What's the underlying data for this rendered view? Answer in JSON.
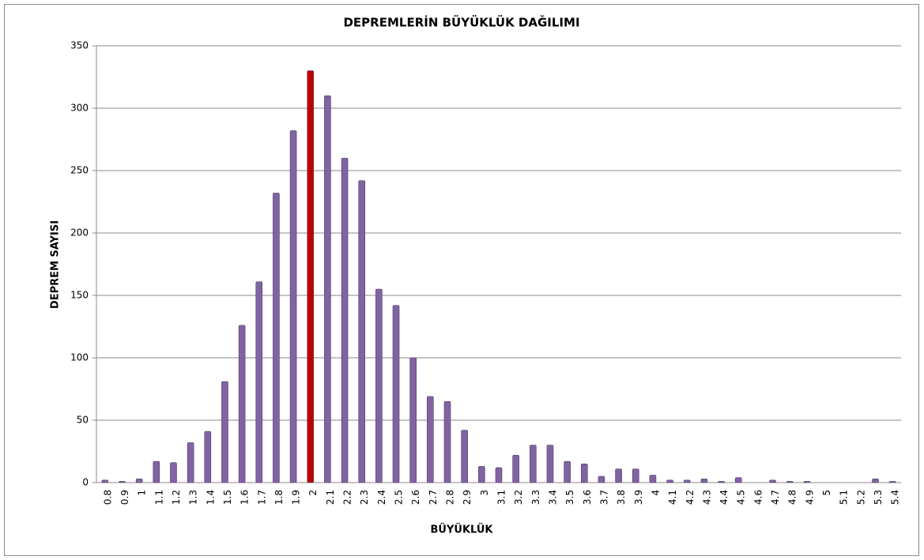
{
  "chart_data": {
    "type": "bar",
    "title": "DEPREMLERİN BÜYÜKLÜK DAĞILIMI",
    "x_label": "BÜYÜKLÜK",
    "y_label": "DEPREM SAYISI",
    "categories": [
      "0.8",
      "0.9",
      "1",
      "1.1",
      "1.2",
      "1.3",
      "1.4",
      "1.5",
      "1.6",
      "1.7",
      "1.8",
      "1.9",
      "2",
      "2.1",
      "2.2",
      "2.3",
      "2.4",
      "2.5",
      "2.6",
      "2.7",
      "2.8",
      "2.9",
      "3",
      "3.1",
      "3.2",
      "3.3",
      "3.4",
      "3.5",
      "3.6",
      "3.7",
      "3.8",
      "3.9",
      "4",
      "4.1",
      "4.2",
      "4.3",
      "4.4",
      "4.5",
      "4.6",
      "4.7",
      "4.8",
      "4.9",
      "5",
      "5.1",
      "5.2",
      "5.3",
      "5.4"
    ],
    "values": [
      2,
      1,
      3,
      17,
      16,
      32,
      41,
      81,
      126,
      161,
      232,
      282,
      330,
      310,
      260,
      242,
      155,
      142,
      100,
      69,
      65,
      42,
      13,
      12,
      22,
      30,
      30,
      17,
      15,
      5,
      11,
      11,
      6,
      2,
      2,
      3,
      1,
      4,
      0,
      2,
      1,
      1,
      0,
      0,
      0,
      3,
      1
    ],
    "colors": [
      "#8064a2",
      "#8064a2",
      "#8064a2",
      "#8064a2",
      "#8064a2",
      "#8064a2",
      "#8064a2",
      "#8064a2",
      "#8064a2",
      "#8064a2",
      "#8064a2",
      "#8064a2",
      "#c00000",
      "#8064a2",
      "#8064a2",
      "#8064a2",
      "#8064a2",
      "#8064a2",
      "#8064a2",
      "#8064a2",
      "#8064a2",
      "#8064a2",
      "#8064a2",
      "#8064a2",
      "#8064a2",
      "#8064a2",
      "#8064a2",
      "#8064a2",
      "#8064a2",
      "#8064a2",
      "#8064a2",
      "#8064a2",
      "#8064a2",
      "#8064a2",
      "#8064a2",
      "#8064a2",
      "#8064a2",
      "#8064a2",
      "#8064a2",
      "#8064a2",
      "#8064a2",
      "#8064a2",
      "#8064a2",
      "#8064a2",
      "#8064a2",
      "#8064a2",
      "#8064a2"
    ],
    "ylim": [
      0,
      350
    ],
    "yticks": [
      0,
      50,
      100,
      150,
      200,
      250,
      300,
      350
    ],
    "grid": true
  }
}
